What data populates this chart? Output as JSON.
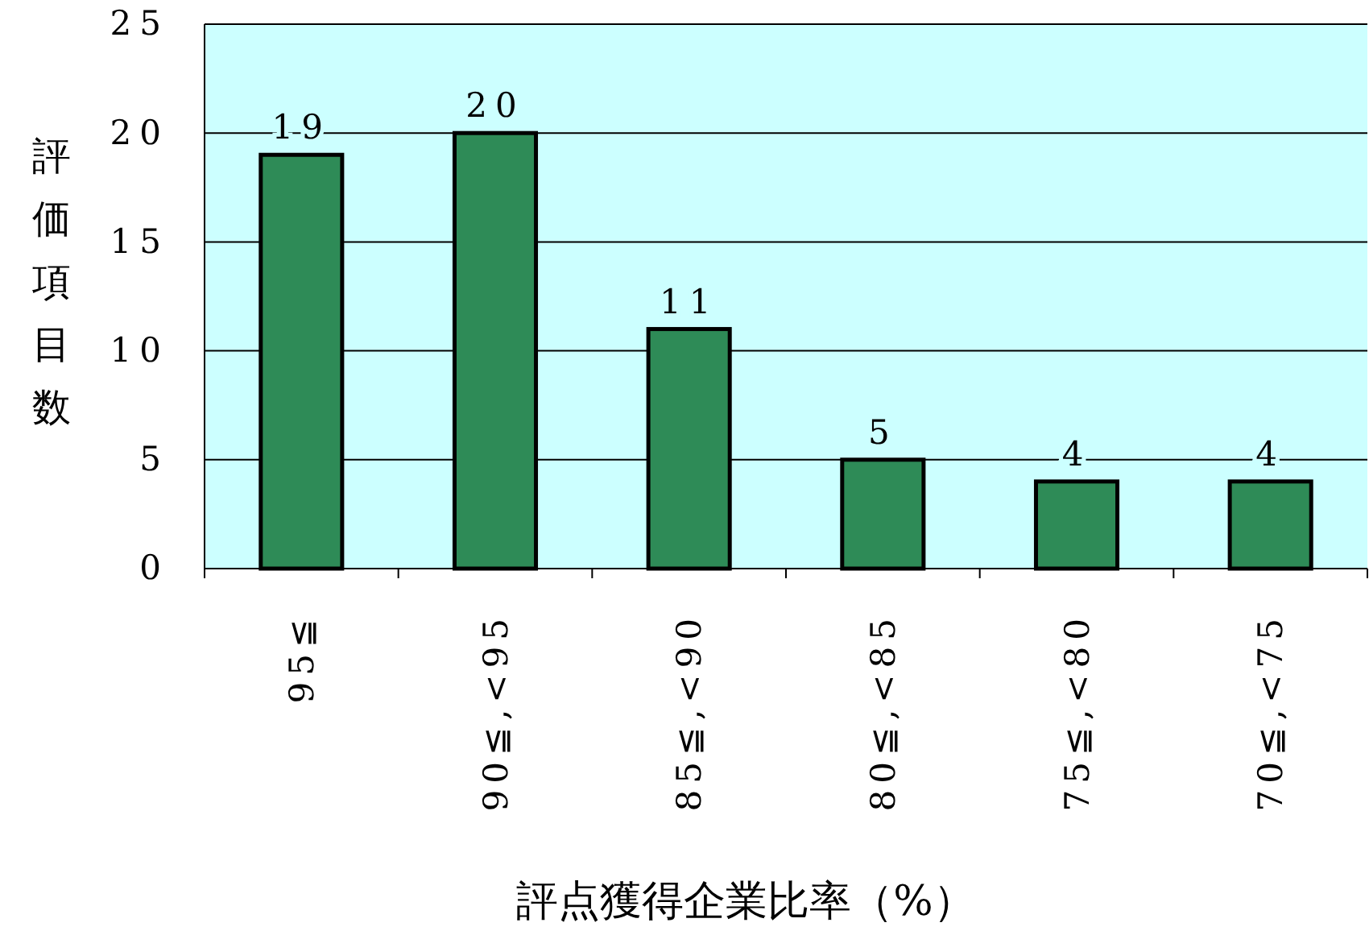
{
  "chart_data": {
    "type": "bar",
    "xlabel": "評点獲得企業比率（%）",
    "ylabel": "評価項目数",
    "categories": [
      "95≦",
      "90≦,<95",
      "85≦,<90",
      "80≦,<85",
      "75≦,<80",
      "70≦,<75"
    ],
    "values": [
      19,
      20,
      11,
      5,
      4,
      4
    ],
    "color": "#2e8b57",
    "ylim": [
      0,
      25
    ],
    "yticks": [
      0,
      5,
      10,
      15,
      20,
      25
    ],
    "grid": "y",
    "data_labels": true
  }
}
